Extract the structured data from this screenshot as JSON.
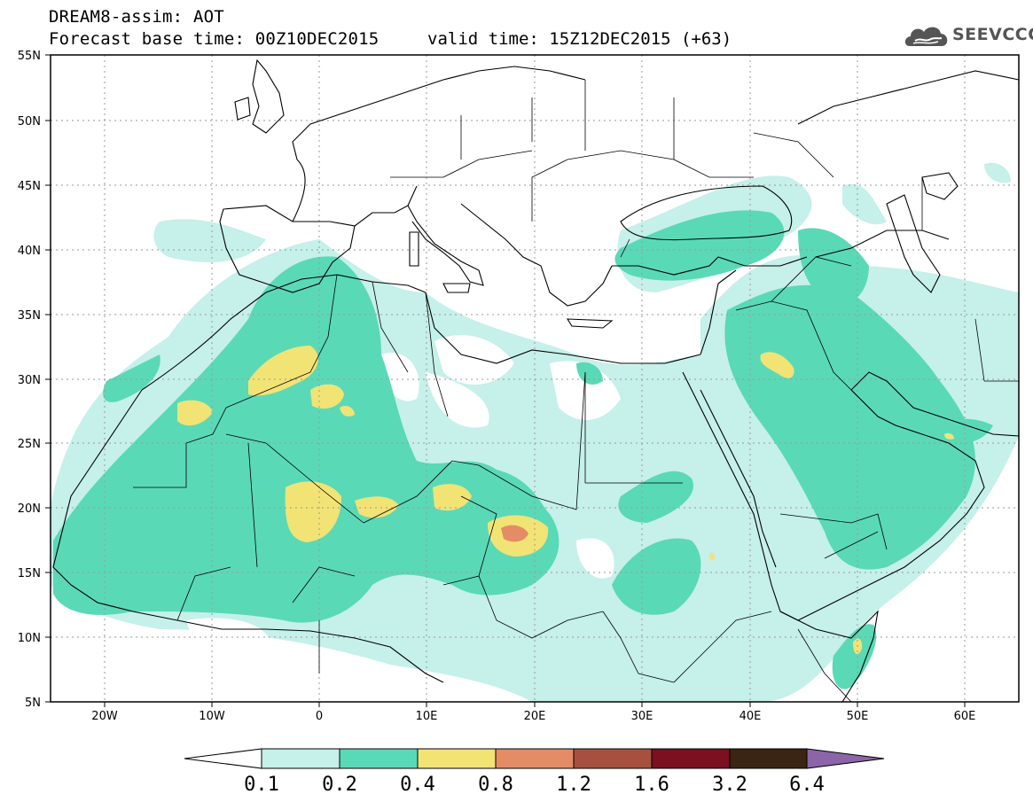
{
  "header": {
    "title_line1": "DREAM8-assim: AOT",
    "title_line2": "Forecast base time: 00Z10DEC2015",
    "valid_time": "valid time: 15Z12DEC2015 (+63)",
    "logo_text": "SEEVCCC"
  },
  "axes": {
    "lat_labels": [
      "55N",
      "50N",
      "45N",
      "40N",
      "35N",
      "30N",
      "25N",
      "20N",
      "15N",
      "10N",
      "5N"
    ],
    "lon_labels": [
      "20W",
      "10W",
      "0",
      "10E",
      "20E",
      "30E",
      "40E",
      "50E",
      "60E"
    ]
  },
  "colorbar": {
    "labels": [
      "0.1",
      "0.2",
      "0.4",
      "0.8",
      "1.2",
      "1.6",
      "3.2",
      "6.4"
    ],
    "colors": [
      "#ffffff",
      "#c6f0ea",
      "#5ad9b7",
      "#f2e375",
      "#e48c66",
      "#a85040",
      "#7a1020",
      "#3a2414",
      "#8c64a8"
    ]
  },
  "colors": {
    "light": "#c6f0ea",
    "green": "#5ad9b7",
    "yellow": "#f2e375",
    "orange": "#e48c66"
  }
}
